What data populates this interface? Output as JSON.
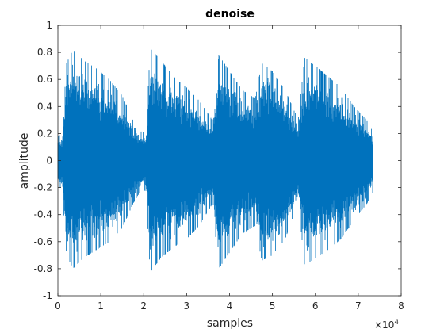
{
  "chart_data": {
    "type": "line",
    "title": "denoise",
    "xlabel": "samples",
    "ylabel": "amplitude",
    "x_multiplier_label": "×10",
    "x_multiplier_exp": "4",
    "xlim": [
      0,
      8
    ],
    "ylim": [
      -1,
      1
    ],
    "x_ticks": [
      0,
      1,
      2,
      3,
      4,
      5,
      6,
      7,
      8
    ],
    "y_ticks": [
      -1,
      -0.8,
      -0.6,
      -0.4,
      -0.2,
      0,
      0.2,
      0.4,
      0.6,
      0.8,
      1
    ],
    "x_tick_labels": [
      "0",
      "1",
      "2",
      "3",
      "4",
      "5",
      "6",
      "7",
      "8"
    ],
    "y_tick_labels": [
      "-1",
      "-0.8",
      "-0.6",
      "-0.4",
      "-0.2",
      "0",
      "0.2",
      "0.4",
      "0.6",
      "0.8",
      "1"
    ],
    "grid": false,
    "line_color": "#0072BD",
    "series": [
      {
        "envelope": [
          {
            "x": 0.0,
            "max": 0.18,
            "min": -0.18
          },
          {
            "x": 0.1,
            "max": 0.2,
            "min": -0.22
          },
          {
            "x": 0.2,
            "max": 0.72,
            "min": -0.7
          },
          {
            "x": 0.35,
            "max": 0.82,
            "min": -0.8
          },
          {
            "x": 0.6,
            "max": 0.74,
            "min": -0.72
          },
          {
            "x": 0.9,
            "max": 0.68,
            "min": -0.66
          },
          {
            "x": 1.2,
            "max": 0.6,
            "min": -0.6
          },
          {
            "x": 1.5,
            "max": 0.48,
            "min": -0.5
          },
          {
            "x": 1.75,
            "max": 0.3,
            "min": -0.32
          },
          {
            "x": 1.9,
            "max": 0.22,
            "min": -0.24
          },
          {
            "x": 2.05,
            "max": 0.2,
            "min": -0.22
          },
          {
            "x": 2.15,
            "max": 0.83,
            "min": -0.83
          },
          {
            "x": 2.4,
            "max": 0.74,
            "min": -0.72
          },
          {
            "x": 2.7,
            "max": 0.62,
            "min": -0.64
          },
          {
            "x": 3.0,
            "max": 0.54,
            "min": -0.58
          },
          {
            "x": 3.3,
            "max": 0.44,
            "min": -0.48
          },
          {
            "x": 3.6,
            "max": 0.3,
            "min": -0.32
          },
          {
            "x": 3.75,
            "max": 0.78,
            "min": -0.8
          },
          {
            "x": 4.0,
            "max": 0.66,
            "min": -0.68
          },
          {
            "x": 4.3,
            "max": 0.52,
            "min": -0.54
          },
          {
            "x": 4.6,
            "max": 0.46,
            "min": -0.48
          },
          {
            "x": 4.75,
            "max": 0.72,
            "min": -0.74
          },
          {
            "x": 5.0,
            "max": 0.66,
            "min": -0.7
          },
          {
            "x": 5.3,
            "max": 0.52,
            "min": -0.58
          },
          {
            "x": 5.6,
            "max": 0.3,
            "min": -0.3
          },
          {
            "x": 5.75,
            "max": 0.76,
            "min": -0.78
          },
          {
            "x": 6.0,
            "max": 0.7,
            "min": -0.72
          },
          {
            "x": 6.3,
            "max": 0.62,
            "min": -0.66
          },
          {
            "x": 6.6,
            "max": 0.54,
            "min": -0.58
          },
          {
            "x": 6.9,
            "max": 0.4,
            "min": -0.44
          },
          {
            "x": 7.2,
            "max": 0.3,
            "min": -0.32
          },
          {
            "x": 7.33,
            "max": 0.22,
            "min": -0.24
          }
        ]
      }
    ]
  }
}
